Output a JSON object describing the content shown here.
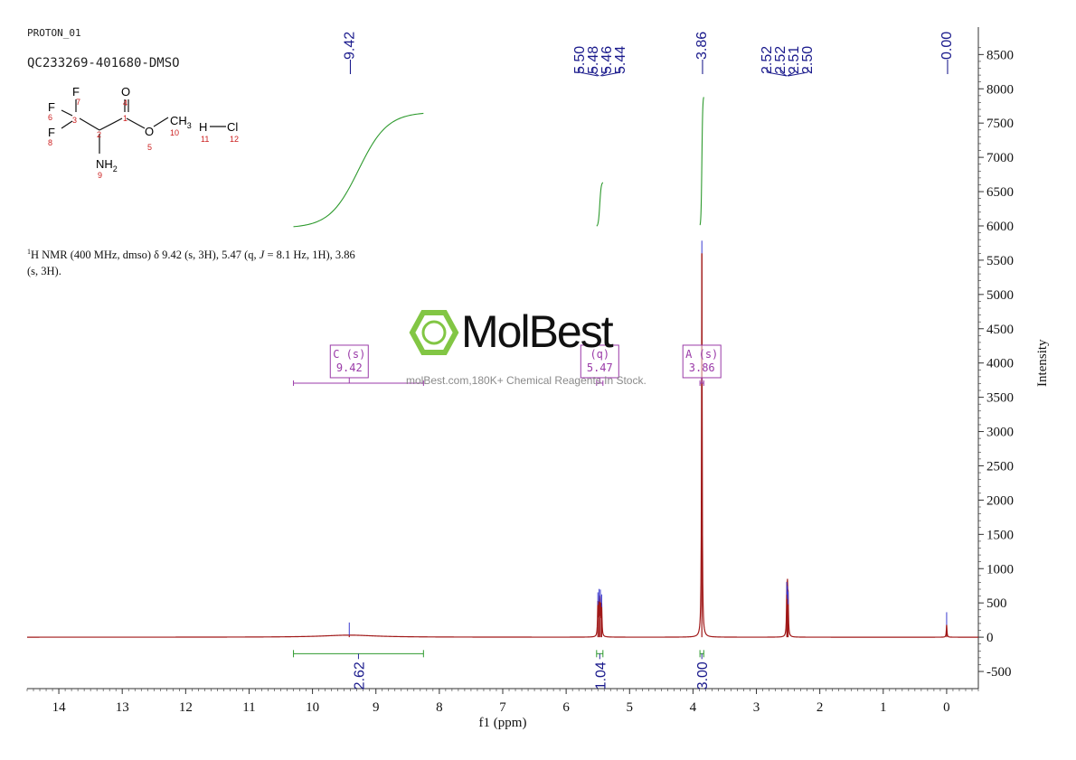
{
  "header": {
    "experiment": "PROTON_01",
    "sample_id": "QC233269-401680-DMSO"
  },
  "structure": {
    "labels": {
      "f7": "F",
      "f6": "F",
      "f8": "F",
      "o4": "O",
      "o5": "O",
      "ch3": "CH",
      "ch3_sub": "3",
      "nh2": "NH",
      "nh2_sub": "2",
      "h": "H",
      "cl": "Cl"
    },
    "numbers": {
      "n7": "7",
      "n6": "6",
      "n8": "8",
      "n3": "3",
      "n4": "4",
      "n1": "1",
      "n2": "2",
      "n5": "5",
      "n10": "10",
      "n9": "9",
      "n11": "11",
      "n12": "12"
    }
  },
  "summary": {
    "nucleus_sup": "1",
    "text1": "H NMR (400 MHz, dmso) δ 9.42 (s, 3H), 5.47 (q, ",
    "j": "J",
    "text2": " = 8.1 Hz, 1H), 3.86",
    "text3": "(s, 3H)."
  },
  "watermark": {
    "brand": "MolBest",
    "url": "molBest.com,180K+ Chemical Reagents In Stock."
  },
  "colors": {
    "spectrum": "#a01818",
    "integral": "#2e9a2e",
    "peak_label": "#1a1a8c",
    "multiplet_box": "#9a3aa8",
    "axis": "#333333",
    "logo": "#7cc43a"
  },
  "chart_data": {
    "type": "line",
    "title": "",
    "xlabel": "f1 (ppm)",
    "ylabel": "Intensity",
    "x_reversed": true,
    "xlim": [
      14.5,
      -0.5
    ],
    "ylim": [
      -750,
      8900
    ],
    "x_ticks": [
      14,
      13,
      12,
      11,
      10,
      9,
      8,
      7,
      6,
      5,
      4,
      3,
      2,
      1,
      0
    ],
    "y_ticks": [
      -500,
      0,
      500,
      1000,
      1500,
      2000,
      2500,
      3000,
      3500,
      4000,
      4500,
      5000,
      5500,
      6000,
      6500,
      7000,
      7500,
      8000,
      8500
    ],
    "peak_labels": [
      {
        "group": "g1",
        "ppm": 9.42,
        "text": "9.42"
      },
      {
        "group": "g2",
        "ppm": 5.5,
        "text": "5.50"
      },
      {
        "group": "g2",
        "ppm": 5.48,
        "text": "5.48"
      },
      {
        "group": "g2",
        "ppm": 5.46,
        "text": "5.46"
      },
      {
        "group": "g2",
        "ppm": 5.44,
        "text": "5.44"
      },
      {
        "group": "g3",
        "ppm": 3.86,
        "text": "3.86"
      },
      {
        "group": "g4",
        "ppm": 2.52,
        "text": "2.52"
      },
      {
        "group": "g4",
        "ppm": 2.52,
        "text": "2.52"
      },
      {
        "group": "g4",
        "ppm": 2.51,
        "text": "2.51"
      },
      {
        "group": "g4",
        "ppm": 2.5,
        "text": "2.50"
      },
      {
        "group": "g5",
        "ppm": 0.0,
        "text": "0.00"
      }
    ],
    "peaks": [
      {
        "ppm": 9.42,
        "height": 30,
        "width": 0.5
      },
      {
        "ppm": 5.5,
        "height": 470,
        "width": 0.006
      },
      {
        "ppm": 5.48,
        "height": 520,
        "width": 0.006
      },
      {
        "ppm": 5.46,
        "height": 510,
        "width": 0.006
      },
      {
        "ppm": 5.44,
        "height": 440,
        "width": 0.006
      },
      {
        "ppm": 3.86,
        "height": 5600,
        "width": 0.006
      },
      {
        "ppm": 2.52,
        "height": 620,
        "width": 0.006
      },
      {
        "ppm": 2.51,
        "height": 560,
        "width": 0.006
      },
      {
        "ppm": 2.5,
        "height": 480,
        "width": 0.006
      },
      {
        "ppm": 0.0,
        "height": 180,
        "width": 0.006
      }
    ],
    "integrals": [
      {
        "from": 10.3,
        "to": 8.25,
        "value": "2.62",
        "curve_start": 5970,
        "curve_end": 7660
      },
      {
        "from": 5.52,
        "to": 5.42,
        "value": "1.04",
        "curve_start": 5990,
        "curve_end": 6640
      },
      {
        "from": 3.89,
        "to": 3.83,
        "value": "3.00",
        "curve_start": 5990,
        "curve_end": 7900
      }
    ],
    "multiplets": [
      {
        "label": "C (s)",
        "shift": "9.42",
        "ppm": 9.42,
        "range": [
          10.3,
          8.25
        ]
      },
      {
        "label": "(q)",
        "shift": "5.47",
        "ppm": 5.47,
        "range": [
          5.52,
          5.42
        ]
      },
      {
        "label": "A (s)",
        "shift": "3.86",
        "ppm": 3.86,
        "range": [
          3.89,
          3.83
        ]
      }
    ]
  }
}
